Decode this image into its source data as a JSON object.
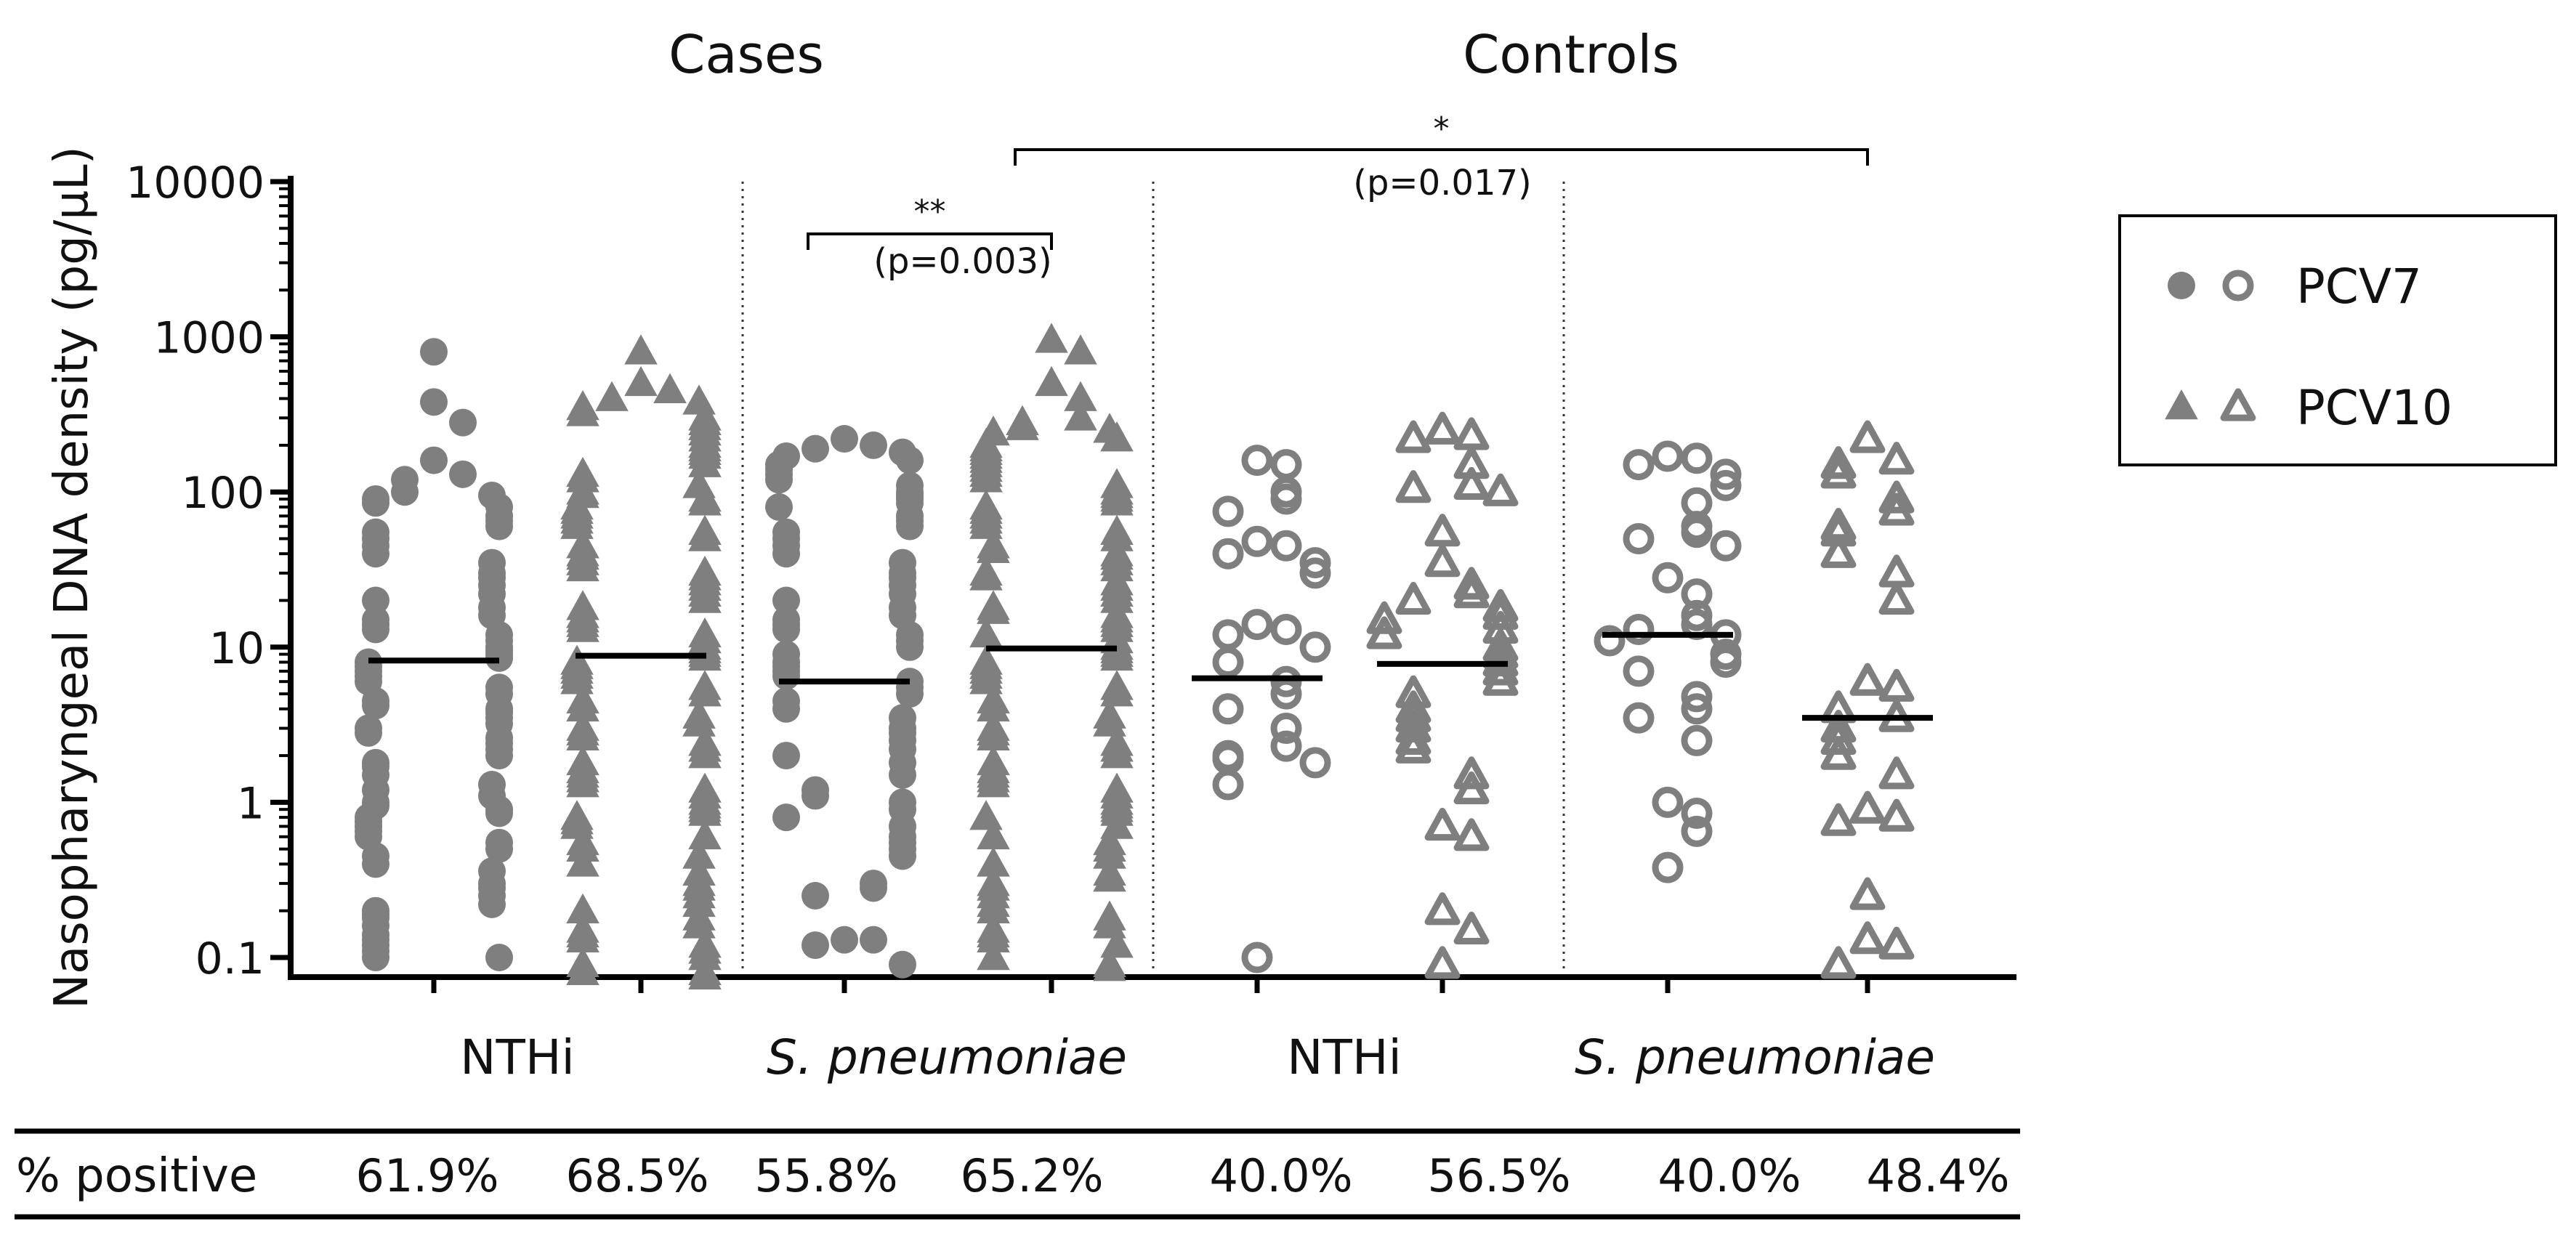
{
  "colors": {
    "marker": "#7f7f7f",
    "axis": "#000000",
    "median": "#000000",
    "text": "#111111"
  },
  "chart_data": {
    "type": "scatter",
    "subtype": "dot-strip plot with median lines",
    "group_titles": [
      "Cases",
      "Controls"
    ],
    "ylabel": "Nasopharyngeal DNA density (pg/μL)",
    "yscale": "log",
    "ylim": [
      0.1,
      10000
    ],
    "yticks": [
      {
        "value": 0.1,
        "label": "0.1"
      },
      {
        "value": 1,
        "label": "1"
      },
      {
        "value": 10,
        "label": "10"
      },
      {
        "value": 100,
        "label": "100"
      },
      {
        "value": 1000,
        "label": "1000"
      },
      {
        "value": 10000,
        "label": "10000"
      }
    ],
    "category_labels": [
      {
        "text": "NTHi",
        "italic": false
      },
      {
        "text": "S. pneumoniae",
        "italic": true
      },
      {
        "text": "NTHi",
        "italic": false
      },
      {
        "text": "S. pneumoniae",
        "italic": true
      }
    ],
    "legend": {
      "position": "right",
      "entries": [
        {
          "label": "PCV7",
          "symbols": [
            "filled-circle",
            "open-circle"
          ]
        },
        {
          "label": "PCV10",
          "symbols": [
            "filled-triangle",
            "open-triangle"
          ]
        }
      ]
    },
    "comparisons": [
      {
        "from": 2,
        "to": 3,
        "stars": "**",
        "p_label": "(p=0.003)"
      },
      {
        "from": 3,
        "to": 7,
        "stars": "*",
        "p_label": "(p=0.017)"
      }
    ],
    "percent_positive": {
      "row_label": "% positive",
      "values": [
        "61.9%",
        "68.5%",
        "55.8%",
        "65.2%",
        "40.0%",
        "56.5%",
        "40.0%",
        "48.4%"
      ]
    },
    "series": [
      {
        "name": "Cases NTHi PCV7",
        "group": "Cases",
        "organism": "NTHi",
        "vaccine": "PCV7",
        "marker": "filled-circle",
        "median": 8.2,
        "values": [
          800,
          380,
          280,
          160,
          130,
          120,
          100,
          95,
          90,
          85,
          80,
          70,
          65,
          60,
          55,
          50,
          45,
          40,
          35,
          30,
          28,
          25,
          22,
          20,
          18,
          16,
          15,
          14,
          13,
          12,
          11,
          10,
          9.5,
          9,
          8.5,
          8,
          7.5,
          7,
          6.5,
          6,
          5.5,
          5,
          4.5,
          4.2,
          4,
          3.8,
          3.5,
          3.2,
          3,
          2.8,
          2.6,
          2.4,
          2.2,
          2,
          1.8,
          1.7,
          1.5,
          1.3,
          1.2,
          1.1,
          1,
          0.95,
          0.9,
          0.85,
          0.8,
          0.75,
          0.7,
          0.65,
          0.6,
          0.55,
          0.5,
          0.45,
          0.4,
          0.36,
          0.3,
          0.28,
          0.25,
          0.22,
          0.2,
          0.19,
          0.18,
          0.16,
          0.14,
          0.13,
          0.12,
          0.11,
          0.1,
          0.1
        ]
      },
      {
        "name": "Cases NTHi PCV10",
        "group": "Cases",
        "organism": "NTHi",
        "vaccine": "PCV10",
        "marker": "filled-triangle",
        "median": 8.8,
        "values": [
          800,
          500,
          450,
          400,
          380,
          350,
          320,
          300,
          280,
          260,
          240,
          220,
          200,
          190,
          180,
          170,
          150,
          130,
          120,
          110,
          100,
          95,
          90,
          85,
          80,
          75,
          70,
          65,
          60,
          55,
          50,
          45,
          40,
          38,
          35,
          32,
          30,
          28,
          26,
          24,
          22,
          20,
          18,
          16,
          15,
          14,
          13,
          12,
          11,
          10,
          9.5,
          9,
          8.5,
          8,
          7.5,
          7,
          6.5,
          6,
          5.5,
          5,
          4.5,
          4,
          3.6,
          3.2,
          3,
          2.8,
          2.6,
          2.4,
          2.2,
          2,
          1.8,
          1.6,
          1.5,
          1.4,
          1.3,
          1.2,
          1.1,
          1,
          0.95,
          0.9,
          0.85,
          0.8,
          0.75,
          0.7,
          0.6,
          0.55,
          0.5,
          0.45,
          0.4,
          0.35,
          0.3,
          0.28,
          0.25,
          0.22,
          0.2,
          0.18,
          0.16,
          0.15,
          0.14,
          0.13,
          0.12,
          0.11,
          0.1,
          0.09,
          0.08,
          0.08,
          0.075
        ]
      },
      {
        "name": "Cases S. pneumoniae PCV7",
        "group": "Cases",
        "organism": "S. pneumoniae",
        "vaccine": "PCV7",
        "marker": "filled-circle",
        "median": 6,
        "values": [
          220,
          200,
          190,
          180,
          170,
          160,
          150,
          140,
          130,
          120,
          110,
          100,
          95,
          90,
          85,
          80,
          70,
          65,
          60,
          55,
          50,
          45,
          40,
          35,
          30,
          28,
          25,
          22,
          20,
          18,
          16,
          15,
          14,
          13,
          12,
          11,
          10,
          9,
          8,
          7.5,
          7,
          6.5,
          6,
          5.5,
          5,
          4.5,
          4,
          3.5,
          3,
          2.8,
          2.5,
          2.2,
          2,
          1.8,
          1.5,
          1.2,
          1.1,
          1,
          0.9,
          0.8,
          0.7,
          0.6,
          0.55,
          0.5,
          0.45,
          0.3,
          0.28,
          0.25,
          0.13,
          0.13,
          0.12,
          0.09
        ]
      },
      {
        "name": "Cases S. pneumoniae PCV10",
        "group": "Cases",
        "organism": "S. pneumoniae",
        "vaccine": "PCV10",
        "marker": "filled-triangle",
        "median": 9.8,
        "values": [
          950,
          800,
          500,
          400,
          300,
          280,
          260,
          250,
          240,
          220,
          200,
          190,
          180,
          170,
          160,
          150,
          140,
          130,
          120,
          110,
          100,
          95,
          90,
          85,
          80,
          75,
          70,
          65,
          60,
          55,
          50,
          45,
          42,
          40,
          38,
          35,
          32,
          30,
          28,
          26,
          24,
          22,
          20,
          18,
          17,
          16,
          15,
          14,
          13,
          12,
          11,
          10,
          9.5,
          9,
          8.5,
          8,
          7.5,
          7,
          6.5,
          6,
          5.5,
          5,
          4.5,
          4,
          3.6,
          3.2,
          3,
          2.8,
          2.6,
          2.4,
          2.2,
          2,
          1.8,
          1.6,
          1.5,
          1.4,
          1.3,
          1.2,
          1.1,
          1,
          0.95,
          0.9,
          0.85,
          0.8,
          0.7,
          0.6,
          0.55,
          0.5,
          0.45,
          0.4,
          0.35,
          0.32,
          0.3,
          0.28,
          0.25,
          0.22,
          0.2,
          0.18,
          0.16,
          0.15,
          0.14,
          0.13,
          0.12,
          0.1,
          0.09,
          0.085
        ]
      },
      {
        "name": "Controls NTHi PCV7",
        "group": "Controls",
        "organism": "NTHi",
        "vaccine": "PCV7",
        "marker": "open-circle",
        "median": 6.3,
        "values": [
          160,
          150,
          100,
          90,
          75,
          48,
          45,
          40,
          35,
          30,
          14,
          13,
          12,
          10,
          8,
          6,
          5,
          4,
          3,
          2.3,
          2,
          1.9,
          1.8,
          1.3,
          0.1
        ]
      },
      {
        "name": "Controls NTHi PCV10",
        "group": "Controls",
        "organism": "NTHi",
        "vaccine": "PCV10",
        "marker": "open-triangle",
        "median": 7.8,
        "values": [
          250,
          230,
          220,
          150,
          110,
          105,
          100,
          55,
          35,
          25,
          22,
          20,
          18,
          16,
          15,
          13,
          12,
          10,
          9,
          8,
          7,
          6,
          5,
          4,
          3.5,
          3,
          2.5,
          2.2,
          1.5,
          1.2,
          0.7,
          0.6,
          0.2,
          0.15,
          0.09
        ]
      },
      {
        "name": "Controls S. pneumoniae PCV7",
        "group": "Controls",
        "organism": "S. pneumoniae",
        "vaccine": "PCV7",
        "marker": "open-circle",
        "median": 12,
        "values": [
          170,
          165,
          150,
          130,
          110,
          85,
          60,
          55,
          50,
          45,
          28,
          22,
          16,
          14,
          13,
          12,
          11,
          9,
          8,
          7,
          4.8,
          4,
          3.5,
          2.5,
          1,
          0.85,
          0.65,
          0.38
        ]
      },
      {
        "name": "Controls S. pneumoniae PCV10",
        "group": "Controls",
        "organism": "S. pneumoniae",
        "vaccine": "PCV10",
        "marker": "open-triangle",
        "median": 3.5,
        "values": [
          220,
          160,
          150,
          130,
          90,
          75,
          60,
          55,
          40,
          30,
          20,
          6,
          5.5,
          4,
          3.5,
          3,
          2.5,
          2,
          1.5,
          0.9,
          0.8,
          0.75,
          0.25,
          0.13,
          0.12,
          0.09
        ]
      }
    ]
  }
}
